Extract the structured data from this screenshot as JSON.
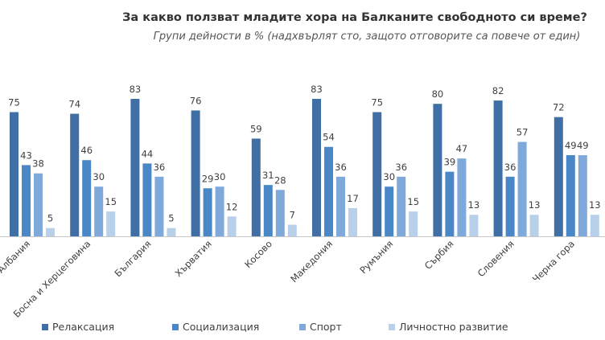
{
  "chart_data": {
    "type": "bar",
    "title": "За какво ползват младите хора на Балканите свободното си време?",
    "subtitle": "Групи дейности в % (надхвърлят сто, защото отговорите са повече от един)",
    "categories": [
      "Албания",
      "Босна и Херцеговина",
      "България",
      "Хърватия",
      "Косово",
      "Македония",
      "Румъния",
      "Сърбия",
      "Словения",
      "Черна гора"
    ],
    "series": [
      {
        "name": "Релаксация",
        "color": "#3f6fa5",
        "values": [
          75,
          74,
          83,
          76,
          59,
          83,
          75,
          80,
          82,
          72
        ]
      },
      {
        "name": "Социализация",
        "color": "#4a87c6",
        "values": [
          43,
          46,
          44,
          29,
          31,
          54,
          30,
          39,
          36,
          49
        ]
      },
      {
        "name": "Спорт",
        "color": "#7ea9da",
        "values": [
          38,
          30,
          36,
          30,
          28,
          36,
          36,
          47,
          57,
          49
        ]
      },
      {
        "name": "Личностно развитие",
        "color": "#b9d0ea",
        "values": [
          5,
          15,
          5,
          12,
          7,
          17,
          15,
          13,
          13,
          13
        ]
      }
    ],
    "ylim": [
      0,
      90
    ],
    "grid": false,
    "legend_position": "bottom",
    "data_labels": true
  }
}
